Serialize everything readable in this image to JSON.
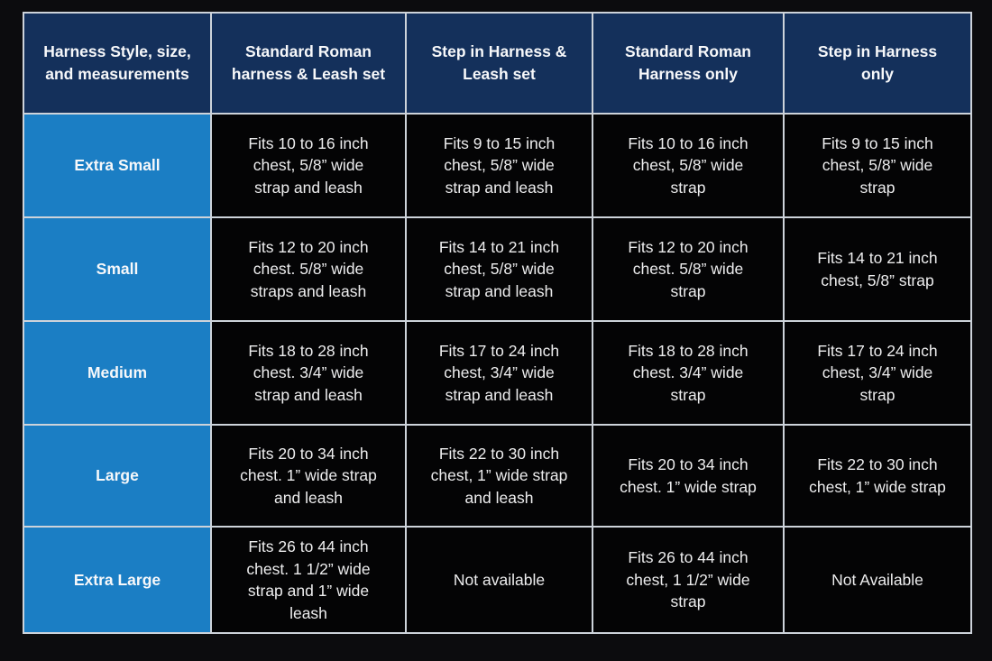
{
  "colors": {
    "page_bg": "#0c0c0e",
    "header_bg": "#14305b",
    "row_label_bg": "#1b7ec4",
    "cell_bg": "#040405",
    "border": "#cdd3da",
    "header_text": "#f7f8fa",
    "cell_text": "#ededee"
  },
  "chart_data": {
    "type": "table",
    "title": "Harness Style, size, and measurements",
    "headers": [
      "Harness Style, size,\nand measurements",
      "Standard Roman\nharness & Leash set",
      "Step in Harness &\nLeash set",
      "Standard Roman\nHarness only",
      "Step in Harness\nonly"
    ],
    "rows": [
      {
        "label": "Extra Small",
        "cells": [
          "Fits 10 to 16 inch\nchest, 5/8” wide\nstrap and leash",
          "Fits 9 to 15 inch\nchest, 5/8” wide\nstrap and leash",
          "Fits 10 to 16 inch\nchest, 5/8” wide\nstrap",
          "Fits 9 to 15 inch\nchest, 5/8” wide\nstrap"
        ]
      },
      {
        "label": "Small",
        "cells": [
          "Fits 12 to 20 inch\nchest. 5/8” wide\nstraps and leash",
          "Fits 14 to 21 inch\nchest, 5/8” wide\nstrap and leash",
          "Fits 12 to 20 inch\nchest. 5/8” wide\nstrap",
          "Fits 14 to 21 inch\nchest, 5/8” strap"
        ]
      },
      {
        "label": "Medium",
        "cells": [
          "Fits 18 to 28 inch\nchest. 3/4” wide\nstrap and leash",
          "Fits 17 to 24 inch\nchest, 3/4” wide\nstrap and leash",
          "Fits 18 to 28 inch\nchest. 3/4” wide\nstrap",
          "Fits 17 to 24 inch\nchest, 3/4” wide\nstrap"
        ]
      },
      {
        "label": "Large",
        "cells": [
          "Fits 20 to 34 inch\nchest. 1” wide strap\nand leash",
          "Fits 22 to 30 inch\nchest, 1” wide strap\nand leash",
          "Fits 20 to 34 inch\nchest. 1” wide strap",
          "Fits 22 to 30 inch\nchest, 1” wide strap"
        ]
      },
      {
        "label": "Extra Large",
        "cells": [
          "Fits 26 to 44 inch\nchest. 1 1/2” wide\nstrap and 1” wide\nleash",
          "Not available",
          "Fits 26 to 44 inch\nchest, 1 1/2” wide\nstrap",
          "Not Available"
        ]
      }
    ]
  }
}
